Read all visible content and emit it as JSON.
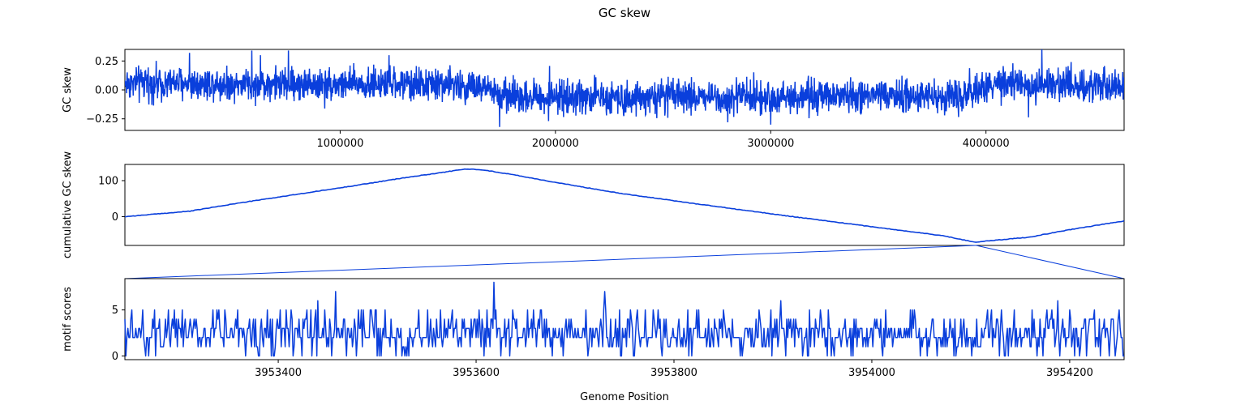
{
  "figure": {
    "title": "GC skew",
    "xlabel": "Genome Position"
  },
  "colors": {
    "line": "#0a3fdc",
    "axis": "#000000",
    "background": "#ffffff"
  },
  "chart_data": [
    {
      "type": "line",
      "panel": "gc-skew",
      "ylabel": "GC skew",
      "xlim": [
        1,
        4641652
      ],
      "ylim": [
        -0.35,
        0.35
      ],
      "xticks": [
        1000000,
        2000000,
        3000000,
        4000000
      ],
      "xtick_labels": [
        "1000000",
        "2000000",
        "3000000",
        "4000000"
      ],
      "yticks": [
        0.25,
        0.0,
        -0.25
      ],
      "ytick_labels": [
        "0.25",
        "0.00",
        "−0.25"
      ],
      "trend_profile": {
        "x": [
          0,
          300000,
          700000,
          1100000,
          1500000,
          1600000,
          1700000,
          1750000,
          2000000,
          2500000,
          3000000,
          3500000,
          3900000,
          3950000,
          4000000,
          4300000,
          4641652
        ],
        "y": [
          0.06,
          0.06,
          0.05,
          0.05,
          0.05,
          0.03,
          0.0,
          -0.05,
          -0.06,
          -0.06,
          -0.06,
          -0.06,
          -0.05,
          -0.01,
          0.04,
          0.05,
          0.05
        ]
      },
      "notable_peaks": [
        {
          "x": 300000,
          "y": 0.32
        },
        {
          "x": 590000,
          "y": 0.34
        },
        {
          "x": 760000,
          "y": 0.34
        },
        {
          "x": 4260000,
          "y": 0.35
        },
        {
          "x": 1740000,
          "y": -0.32
        },
        {
          "x": 2800000,
          "y": -0.28
        },
        {
          "x": 3000000,
          "y": -0.3
        }
      ]
    },
    {
      "type": "line",
      "panel": "cumulative-gc-skew",
      "ylabel": "cumulative GC skew",
      "xlim": [
        1,
        4641652
      ],
      "ylim": [
        -80,
        145
      ],
      "yticks": [
        100,
        0
      ],
      "ytick_labels": [
        "100",
        "0"
      ],
      "x": [
        0,
        300000,
        500000,
        700000,
        1000000,
        1300000,
        1500000,
        1580000,
        1650000,
        1800000,
        2000000,
        2300000,
        2600000,
        3000000,
        3300000,
        3600000,
        3800000,
        3950000,
        4000000,
        4200000,
        4400000,
        4641652
      ],
      "y": [
        0,
        15,
        35,
        53,
        80,
        108,
        125,
        132,
        131,
        117,
        95,
        65,
        40,
        8,
        -15,
        -38,
        -53,
        -71,
        -68,
        -57,
        -35,
        -12
      ]
    },
    {
      "type": "line",
      "panel": "motif-scores",
      "ylabel": "motif scores",
      "xlim": [
        3953245,
        3954255
      ],
      "ylim": [
        -0.4,
        8.4
      ],
      "xticks": [
        3953400,
        3953600,
        3953800,
        3954000,
        3954200
      ],
      "xtick_labels": [
        "3953400",
        "3953600",
        "3953800",
        "3954000",
        "3954200"
      ],
      "yticks": [
        5,
        0
      ],
      "ytick_labels": [
        "5",
        "0"
      ],
      "value_range": [
        0,
        8
      ],
      "notable_peaks": [
        {
          "x": 3953458,
          "y": 7
        },
        {
          "x": 3953618,
          "y": 8
        },
        {
          "x": 3953730,
          "y": 7
        },
        {
          "x": 3953440,
          "y": 6
        },
        {
          "x": 3953908,
          "y": 6
        },
        {
          "x": 3954188,
          "y": 6
        },
        {
          "x": 3954225,
          "y": 5
        }
      ]
    }
  ],
  "zoom_connector": {
    "from_panel": "cumulative-gc-skew",
    "to_panel": "motif-scores",
    "source_x_range": [
      3953245,
      3954255
    ]
  }
}
